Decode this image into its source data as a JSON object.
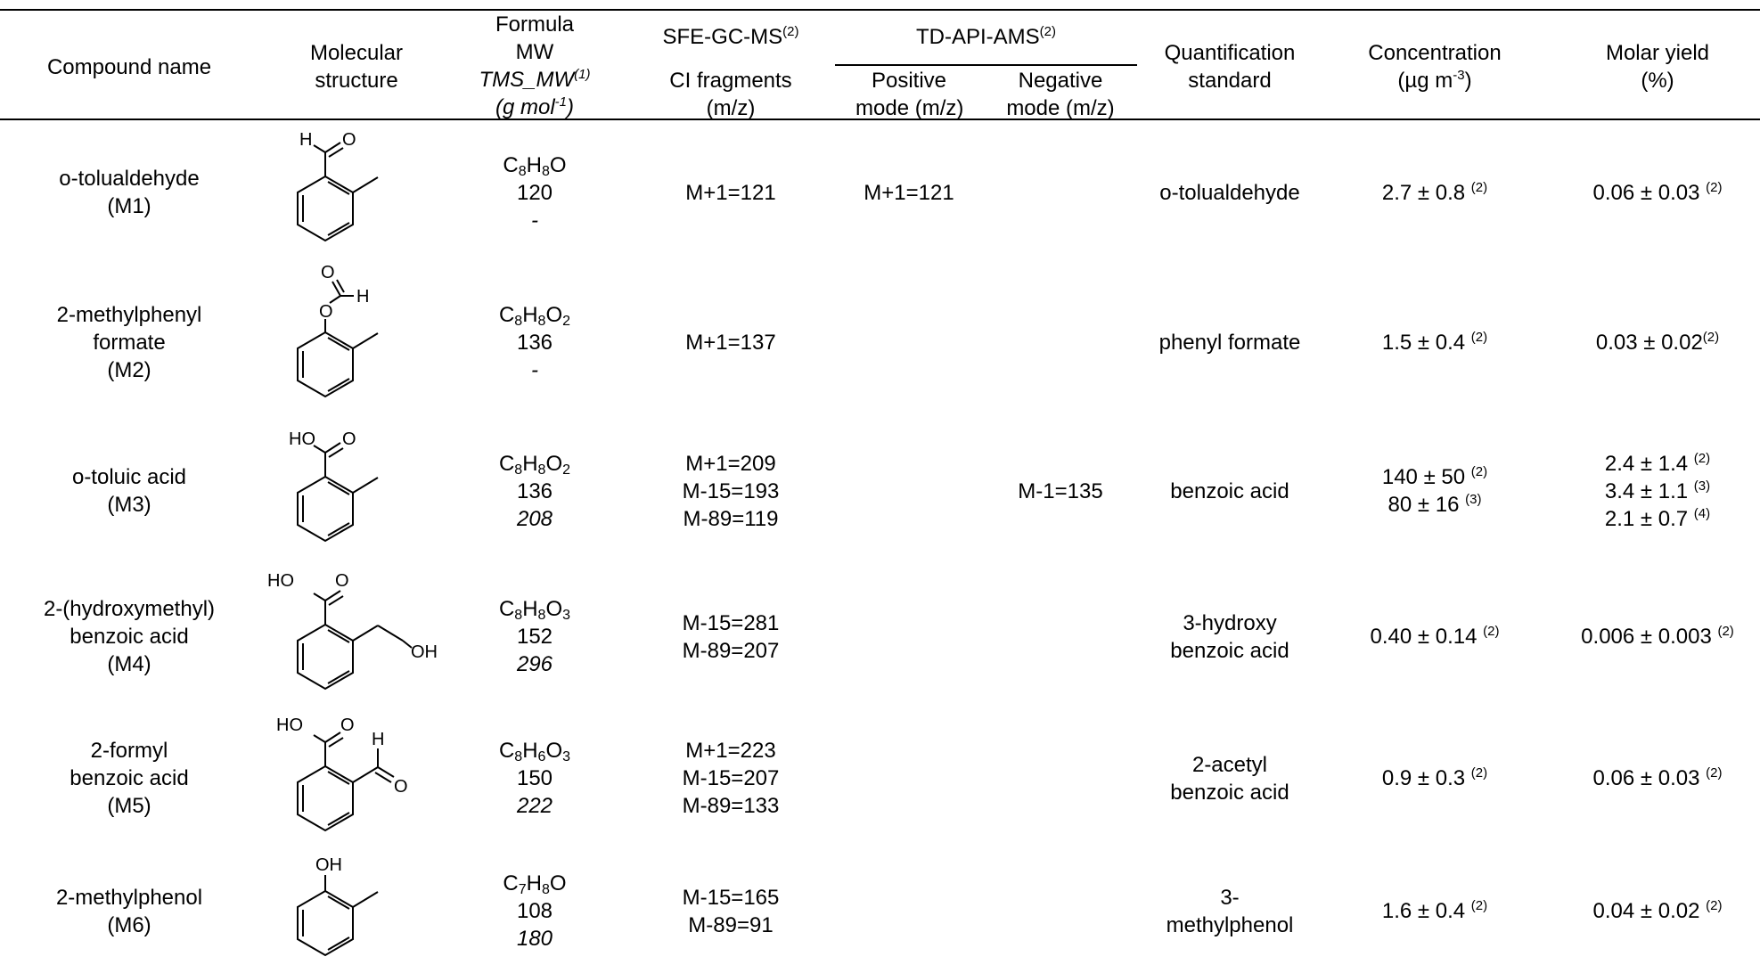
{
  "header": {
    "compound": "Compound name",
    "molecular": [
      "Molecular",
      "structure"
    ],
    "formula": [
      "Formula",
      "MW",
      "TMS_MW",
      "(1)",
      "(g mol",
      "-1",
      ")"
    ],
    "sfe": [
      "SFE-GC-MS",
      "(2)",
      "CI fragments",
      "(m/z)"
    ],
    "td": [
      "TD-API-AMS",
      "(2)"
    ],
    "positive": [
      "Positive",
      "mode (m/z)"
    ],
    "negative": [
      "Negative",
      "mode (m/z)"
    ],
    "quant": [
      "Quantification",
      "standard"
    ],
    "conc": [
      "Concentration",
      "(µg m",
      "-3",
      ")"
    ],
    "molar": [
      "Molar yield",
      "(%)"
    ]
  },
  "rows": [
    {
      "name": [
        "o-tolualdehyde",
        "(M1)"
      ],
      "structure_icon": "o-tolualdehyde-structure-icon",
      "atoms": [
        "H",
        "O"
      ],
      "formula": [
        "C",
        "8",
        "H",
        "8",
        "O"
      ],
      "mw": "120",
      "tms": "-",
      "ci": [
        "M+1=121"
      ],
      "pos": "M+1=121",
      "neg": "",
      "standard": [
        "o-tolualdehyde"
      ],
      "conc": [
        {
          "v": "2.7 ± 0.8",
          "n": "(2)"
        }
      ],
      "yield": [
        {
          "v": "0.06 ± 0.03",
          "n": "(2)"
        }
      ]
    },
    {
      "name": [
        "2-methylphenyl",
        "formate",
        "(M2)"
      ],
      "structure_icon": "2-methylphenyl-formate-structure-icon",
      "atoms": [
        "O",
        "H",
        "O"
      ],
      "formula": [
        "C",
        "8",
        "H",
        "8",
        "O",
        "2"
      ],
      "mw": "136",
      "tms": "-",
      "ci": [
        "M+1=137"
      ],
      "pos": "",
      "neg": "",
      "standard": [
        "phenyl formate"
      ],
      "conc": [
        {
          "v": "1.5 ± 0.4",
          "n": "(2)"
        }
      ],
      "yield": [
        {
          "v": "0.03 ± 0.02",
          "n": "(2)"
        }
      ]
    },
    {
      "name": [
        "o-toluic acid",
        "(M3)"
      ],
      "structure_icon": "o-toluic-acid-structure-icon",
      "atoms": [
        "HO",
        "O"
      ],
      "formula": [
        "C",
        "8",
        "H",
        "8",
        "O",
        "2"
      ],
      "mw": "136",
      "tms": "208",
      "ci": [
        "M+1=209",
        "M-15=193",
        "M-89=119"
      ],
      "pos": "",
      "neg": "M-1=135",
      "standard": [
        "benzoic acid"
      ],
      "conc": [
        {
          "v": "140 ± 50",
          "n": "(2)"
        },
        {
          "v": "80 ± 16",
          "n": "(3)"
        }
      ],
      "yield": [
        {
          "v": "2.4 ± 1.4",
          "n": "(2)"
        },
        {
          "v": "3.4 ± 1.1",
          "n": "(3)"
        },
        {
          "v": "2.1 ± 0.7",
          "n": "(4)"
        }
      ]
    },
    {
      "name": [
        "2-(hydroxymethyl)",
        "benzoic acid",
        "(M4)"
      ],
      "structure_icon": "2-hydroxymethyl-benzoic-acid-structure-icon",
      "atoms": [
        "HO",
        "O",
        "OH"
      ],
      "formula": [
        "C",
        "8",
        "H",
        "8",
        "O",
        "3"
      ],
      "mw": "152",
      "tms": "296",
      "ci": [
        "M-15=281",
        "M-89=207"
      ],
      "pos": "",
      "neg": "",
      "standard": [
        "3-hydroxy",
        "benzoic acid"
      ],
      "conc": [
        {
          "v": "0.40 ± 0.14",
          "n": "(2)"
        }
      ],
      "yield": [
        {
          "v": "0.006 ± 0.003",
          "n": "(2)"
        }
      ]
    },
    {
      "name": [
        "2-formyl",
        "benzoic acid",
        "(M5)"
      ],
      "structure_icon": "2-formyl-benzoic-acid-structure-icon",
      "atoms": [
        "HO",
        "O",
        "H",
        "O"
      ],
      "formula": [
        "C",
        "8",
        "H",
        "6",
        "O",
        "3"
      ],
      "mw": "150",
      "tms": "222",
      "ci": [
        "M+1=223",
        "M-15=207",
        "M-89=133"
      ],
      "pos": "",
      "neg": "",
      "standard": [
        "2-acetyl",
        "benzoic acid"
      ],
      "conc": [
        {
          "v": "0.9 ± 0.3",
          "n": "(2)"
        }
      ],
      "yield": [
        {
          "v": "0.06 ± 0.03",
          "n": "(2)"
        }
      ]
    },
    {
      "name": [
        "2-methylphenol",
        "(M6)"
      ],
      "structure_icon": "2-methylphenol-structure-icon",
      "atoms": [
        "OH"
      ],
      "formula": [
        "C",
        "7",
        "H",
        "8",
        "O"
      ],
      "mw": "108",
      "tms": "180",
      "ci": [
        "M-15=165",
        "M-89=91"
      ],
      "pos": "",
      "neg": "",
      "standard": [
        "3-",
        "methylphenol"
      ],
      "conc": [
        {
          "v": "1.6 ± 0.4",
          "n": "(2)"
        }
      ],
      "yield": [
        {
          "v": "0.04 ± 0.02",
          "n": "(2)"
        }
      ]
    }
  ]
}
